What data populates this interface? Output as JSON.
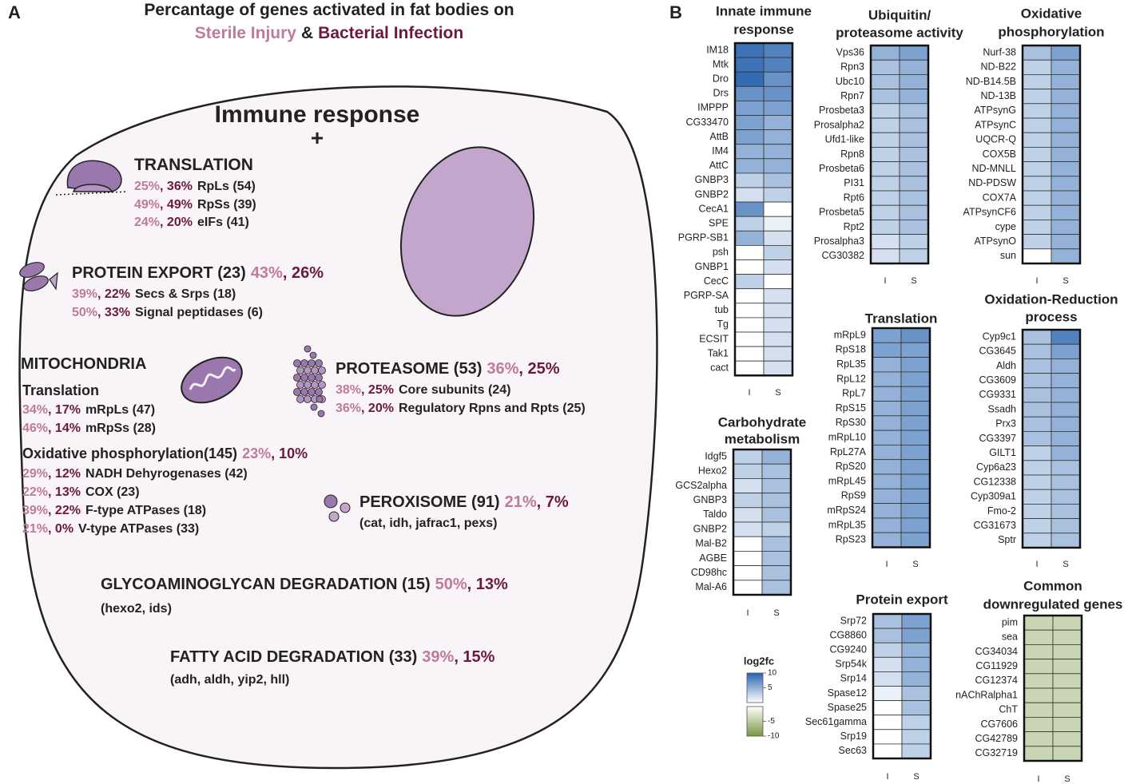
{
  "panel_a": {
    "label": "A",
    "rows": [
      [
        {
          "text": "Percantage of genes activated in fat bodies on",
          "tone": "k"
        }
      ],
      [
        {
          "text": "Sterile Injury",
          "tone": "s"
        },
        {
          "text": "&",
          "tone": "k"
        },
        {
          "text": "Bacterial Infection",
          "tone": "b"
        }
      ],
      [
        {
          "text": "Immune response",
          "tone": "k"
        }
      ],
      [
        {
          "text": "+",
          "tone": "k"
        }
      ],
      [
        {
          "text": "TRANSLATION",
          "tone": "k"
        }
      ],
      [
        {
          "text": "25%",
          "tone": "s"
        },
        {
          "text": ", 36%",
          "tone": "b"
        },
        {
          "text": "RpLs (54)",
          "tone": "k"
        }
      ],
      [
        {
          "text": "49%",
          "tone": "s"
        },
        {
          "text": ", 49%",
          "tone": "b"
        },
        {
          "text": "RpSs (39)",
          "tone": "k"
        }
      ],
      [
        {
          "text": "24%",
          "tone": "s"
        },
        {
          "text": ", 20%",
          "tone": "b"
        },
        {
          "text": "eIFs (41)",
          "tone": "k"
        }
      ],
      [
        {
          "text": "PROTEIN EXPORT (23)",
          "tone": "k"
        },
        {
          "text": "43%",
          "tone": "s"
        },
        {
          "text": ", 26%",
          "tone": "b"
        }
      ],
      [
        {
          "text": "39%",
          "tone": "s"
        },
        {
          "text": ", 22%",
          "tone": "b"
        },
        {
          "text": "Secs & Srps (18)",
          "tone": "k"
        }
      ],
      [
        {
          "text": "50%",
          "tone": "s"
        },
        {
          "text": ", 33%",
          "tone": "b"
        },
        {
          "text": "Signal peptidases (6)",
          "tone": "k"
        }
      ],
      [
        {
          "text": "MITOCHONDRIA",
          "tone": "k"
        }
      ],
      [
        {
          "text": "Translation",
          "tone": "k"
        }
      ],
      [
        {
          "text": "34%",
          "tone": "s"
        },
        {
          "text": ", 17%",
          "tone": "b"
        },
        {
          "text": "mRpLs (47)",
          "tone": "k"
        }
      ],
      [
        {
          "text": "46%",
          "tone": "s"
        },
        {
          "text": ", 14%",
          "tone": "b"
        },
        {
          "text": "mRpSs (28)",
          "tone": "k"
        }
      ],
      [
        {
          "text": "Oxidative phosphorylation(145)",
          "tone": "k"
        },
        {
          "text": "23%",
          "tone": "s"
        },
        {
          "text": ", 10%",
          "tone": "b"
        }
      ],
      [
        {
          "text": "29%",
          "tone": "s"
        },
        {
          "text": ", 12%",
          "tone": "b"
        },
        {
          "text": "NADH Dehyrogenases (42)",
          "tone": "k"
        }
      ],
      [
        {
          "text": "22%",
          "tone": "s"
        },
        {
          "text": ", 13%",
          "tone": "b"
        },
        {
          "text": "COX (23)",
          "tone": "k"
        }
      ],
      [
        {
          "text": "39%",
          "tone": "s"
        },
        {
          "text": ", 22%",
          "tone": "b"
        },
        {
          "text": "F-type ATPases (18)",
          "tone": "k"
        }
      ],
      [
        {
          "text": "21%",
          "tone": "s"
        },
        {
          "text": ", 0%",
          "tone": "b"
        },
        {
          "text": "V-type ATPases (33)",
          "tone": "k"
        }
      ],
      [
        {
          "text": "PROTEASOME (53)",
          "tone": "k"
        },
        {
          "text": "36%",
          "tone": "s"
        },
        {
          "text": ", 25%",
          "tone": "b"
        }
      ],
      [
        {
          "text": "38%",
          "tone": "s"
        },
        {
          "text": ", 25%",
          "tone": "b"
        },
        {
          "text": "Core subunits (24)",
          "tone": "k"
        }
      ],
      [
        {
          "text": "36%",
          "tone": "s"
        },
        {
          "text": ", 20%",
          "tone": "b"
        },
        {
          "text": "Regulatory Rpns and Rpts (25)",
          "tone": "k"
        }
      ],
      [
        {
          "text": "PEROXISOME (91)",
          "tone": "k"
        },
        {
          "text": "21%",
          "tone": "s"
        },
        {
          "text": ", 7%",
          "tone": "b"
        }
      ],
      [
        {
          "text": "(cat, idh, jafrac1, pexs)",
          "tone": "k"
        }
      ],
      [
        {
          "text": "GLYCOAMINOGLYCAN DEGRADATION (15)",
          "tone": "k"
        },
        {
          "text": "50%",
          "tone": "s"
        },
        {
          "text": ", 13%",
          "tone": "b"
        }
      ],
      [
        {
          "text": "(hexo2, ids)",
          "tone": "k"
        }
      ],
      [
        {
          "text": "FATTY ACID DEGRADATION (33)",
          "tone": "k"
        },
        {
          "text": "39%",
          "tone": "s"
        },
        {
          "text": ", 15%",
          "tone": "b"
        }
      ],
      [
        {
          "text": "(adh, aldh, yip2, hll)",
          "tone": "k"
        }
      ]
    ]
  },
  "panel_b": {
    "label": "B",
    "heatmaps": [
      {
        "title": [
          "Innate immune",
          "response"
        ],
        "columns": [
          "I",
          "S"
        ],
        "genes": [
          "IM18",
          "Mtk",
          "Dro",
          "Drs",
          "IMPPP",
          "CG33470",
          "AttB",
          "IM4",
          "AttC",
          "GNBP3",
          "GNBP2",
          "CecA1",
          "SPE",
          "PGRP-SB1",
          "psh",
          "GNBP1",
          "CecC",
          "PGRP-SA",
          "tub",
          "Tg",
          "ECSIT",
          "Tak1",
          "cact"
        ],
        "values": [
          [
            9,
            8
          ],
          [
            9,
            8
          ],
          [
            9.5,
            7
          ],
          [
            7,
            7
          ],
          [
            6,
            6
          ],
          [
            6,
            5
          ],
          [
            6,
            5
          ],
          [
            5,
            5
          ],
          [
            5,
            5
          ],
          [
            3,
            4
          ],
          [
            2,
            3
          ],
          [
            7,
            0
          ],
          [
            3,
            1
          ],
          [
            5,
            2
          ],
          [
            0,
            3
          ],
          [
            0,
            2
          ],
          [
            3,
            0
          ],
          [
            0,
            2
          ],
          [
            0,
            2
          ],
          [
            0,
            2
          ],
          [
            0,
            2
          ],
          [
            0,
            2
          ],
          [
            0,
            2
          ]
        ]
      },
      {
        "title": [
          "Ubiquitin/",
          "proteasome activity"
        ],
        "columns": [
          "I",
          "S"
        ],
        "genes": [
          "Vps36",
          "Rpn3",
          "Ubc10",
          "Rpn7",
          "Prosbeta3",
          "Prosalpha2",
          "Ufd1-like",
          "Rpn8",
          "Prosbeta6",
          "PI31",
          "Rpt6",
          "Prosbeta5",
          "Rpt2",
          "Prosalpha3",
          "CG30382"
        ],
        "values": [
          [
            5,
            6
          ],
          [
            4,
            5
          ],
          [
            4,
            5
          ],
          [
            4,
            5
          ],
          [
            3,
            4
          ],
          [
            3,
            4
          ],
          [
            3,
            4
          ],
          [
            3,
            4
          ],
          [
            3,
            4
          ],
          [
            3,
            4
          ],
          [
            3,
            4
          ],
          [
            3,
            4
          ],
          [
            3,
            4
          ],
          [
            2,
            3
          ],
          [
            2,
            3
          ]
        ]
      },
      {
        "title": [
          "Oxidative",
          "phosphorylation"
        ],
        "columns": [
          "I",
          "S"
        ],
        "genes": [
          "Nurf-38",
          "ND-B22",
          "ND-B14.5B",
          "ND-13B",
          "ATPsynG",
          "ATPsynC",
          "UQCR-Q",
          "COX5B",
          "ND-MNLL",
          "ND-PDSW",
          "COX7A",
          "ATPsynCF6",
          "cype",
          "ATPsynO",
          "sun"
        ],
        "values": [
          [
            4,
            6
          ],
          [
            3,
            5
          ],
          [
            3,
            5
          ],
          [
            3,
            5
          ],
          [
            3,
            5
          ],
          [
            3,
            5
          ],
          [
            3,
            5
          ],
          [
            3,
            5
          ],
          [
            3,
            5
          ],
          [
            3,
            5
          ],
          [
            3,
            5
          ],
          [
            3,
            5
          ],
          [
            3,
            5
          ],
          [
            3,
            5
          ],
          [
            0,
            5
          ]
        ]
      },
      {
        "title": [
          "Carbohydrate",
          "metabolism"
        ],
        "columns": [
          "I",
          "S"
        ],
        "genes": [
          "Idgf5",
          "Hexo2",
          "GCS2alpha",
          "GNBP3",
          "Taldo",
          "GNBP2",
          "Mal-B2",
          "AGBE",
          "CD98hc",
          "Mal-A6"
        ],
        "values": [
          [
            3,
            5
          ],
          [
            3,
            4
          ],
          [
            2,
            4
          ],
          [
            3,
            4
          ],
          [
            2,
            4
          ],
          [
            2,
            3
          ],
          [
            0,
            4
          ],
          [
            0,
            4
          ],
          [
            0,
            4
          ],
          [
            0,
            4
          ]
        ]
      },
      {
        "title": [
          "Translation"
        ],
        "columns": [
          "I",
          "S"
        ],
        "genes": [
          "mRpL9",
          "RpS18",
          "RpL35",
          "RpL12",
          "RpL7",
          "RpS15",
          "RpS30",
          "mRpL10",
          "RpL27A",
          "RpS20",
          "mRpL45",
          "RpS9",
          "mRpS24",
          "mRpL35",
          "RpS23"
        ],
        "values": [
          [
            6,
            7
          ],
          [
            6,
            6
          ],
          [
            5,
            6
          ],
          [
            5,
            6
          ],
          [
            5,
            6
          ],
          [
            5,
            6
          ],
          [
            5,
            6
          ],
          [
            5,
            6
          ],
          [
            5,
            6
          ],
          [
            5,
            6
          ],
          [
            5,
            6
          ],
          [
            5,
            6
          ],
          [
            5,
            6
          ],
          [
            5,
            6
          ],
          [
            5,
            6
          ]
        ]
      },
      {
        "title": [
          "Oxidation-Reduction",
          "process"
        ],
        "columns": [
          "I",
          "S"
        ],
        "genes": [
          "Cyp9c1",
          "CG3645",
          "Aldh",
          "CG3609",
          "CG9331",
          "Ssadh",
          "Prx3",
          "CG3397",
          "GILT1",
          "Cyp6a23",
          "CG12338",
          "Cyp309a1",
          "Fmo-2",
          "CG31673",
          "Sptr"
        ],
        "values": [
          [
            4,
            8
          ],
          [
            4,
            6
          ],
          [
            4,
            5
          ],
          [
            4,
            5
          ],
          [
            4,
            5
          ],
          [
            4,
            5
          ],
          [
            4,
            5
          ],
          [
            4,
            5
          ],
          [
            3,
            5
          ],
          [
            3,
            4
          ],
          [
            3,
            4
          ],
          [
            3,
            4
          ],
          [
            3,
            4
          ],
          [
            3,
            4
          ],
          [
            3,
            4
          ]
        ]
      },
      {
        "title": [
          "Protein export"
        ],
        "columns": [
          "I",
          "S"
        ],
        "genes": [
          "Srp72",
          "CG8860",
          "CG9240",
          "Srp54k",
          "Srp14",
          "Spase12",
          "Spase25",
          "Sec61gamma",
          "Srp19",
          "Sec63"
        ],
        "values": [
          [
            4,
            6
          ],
          [
            4,
            6
          ],
          [
            3,
            5
          ],
          [
            2,
            5
          ],
          [
            2,
            5
          ],
          [
            1,
            4
          ],
          [
            0,
            4
          ],
          [
            0,
            3
          ],
          [
            0,
            3
          ],
          [
            0,
            3
          ]
        ]
      },
      {
        "title": [
          "Common",
          "downregulated genes"
        ],
        "columns": [
          "I",
          "S"
        ],
        "genes": [
          "pim",
          "sea",
          "CG34034",
          "CG11929",
          "CG12374",
          "nAChRalpha1",
          "ChT",
          "CG7606",
          "CG42789",
          "CG32719"
        ],
        "values": [
          [
            -4,
            -4
          ],
          [
            -4,
            -4
          ],
          [
            -4,
            -4
          ],
          [
            -4,
            -4
          ],
          [
            -4,
            -4
          ],
          [
            -4,
            -4
          ],
          [
            -4,
            -4
          ],
          [
            -4,
            -4
          ],
          [
            -4,
            -4
          ],
          [
            -4,
            -4
          ]
        ]
      }
    ],
    "colorbar": {
      "title": "log2fc",
      "range": [
        -10,
        10
      ],
      "ticks": [
        10,
        5,
        -5,
        -10
      ],
      "positive_color": "#2864af",
      "negative_color": "#7a9646"
    }
  }
}
